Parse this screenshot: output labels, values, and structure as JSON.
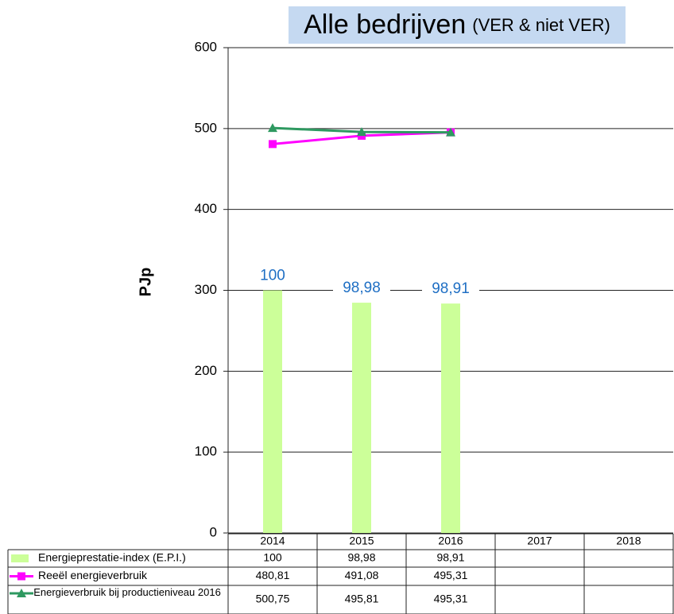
{
  "chart_data": {
    "type": "bar-line",
    "title": "Alle bedrijven",
    "subtitle": "(VER & niet VER)",
    "y_label": "PJp",
    "categories": [
      "2014",
      "2015",
      "2016",
      "2017",
      "2018"
    ],
    "ylim": [
      0,
      600
    ],
    "yticks": [
      0,
      100,
      200,
      300,
      400,
      500,
      600
    ],
    "y2lim": [
      80,
      120
    ],
    "grid": true,
    "series": [
      {
        "name": "Energieprestatie-index (E.P.I.)",
        "type": "bar",
        "axis": "y2",
        "color": "#ccff99",
        "values": [
          100,
          98.98,
          98.91,
          null,
          null
        ],
        "value_labels": [
          "100",
          "98,98",
          "98,91",
          null,
          null
        ]
      },
      {
        "name": "Reeël energieverbruik",
        "type": "line",
        "marker": "square",
        "color": "#ff00ff",
        "values": [
          480.81,
          491.08,
          495.31,
          null,
          null
        ],
        "value_labels": [
          "480,81",
          "491,08",
          "495,31",
          null,
          null
        ]
      },
      {
        "name": "Energieverbruik bij productieniveau 2016",
        "type": "line",
        "marker": "triangle",
        "color": "#2e9960",
        "values": [
          500.75,
          495.81,
          495.31,
          null,
          null
        ],
        "value_labels": [
          "500,75",
          "495,81",
          "495,31",
          null,
          null
        ]
      }
    ]
  }
}
